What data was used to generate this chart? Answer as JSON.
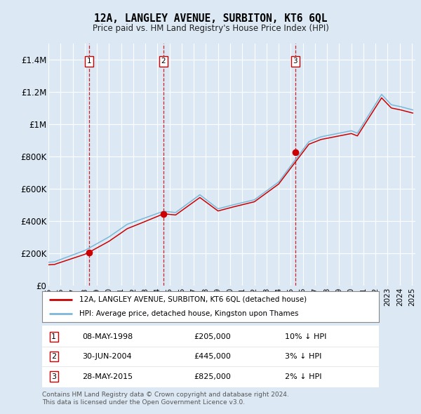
{
  "title": "12A, LANGLEY AVENUE, SURBITON, KT6 6QL",
  "subtitle": "Price paid vs. HM Land Registry's House Price Index (HPI)",
  "background_color": "#dce9f5",
  "plot_bg_color": "#dce9f5",
  "hpi_color": "#7bb8d8",
  "price_color": "#cc0000",
  "sale_marker_color": "#cc0000",
  "ylim": [
    0,
    1500000
  ],
  "yticks": [
    0,
    200000,
    400000,
    600000,
    800000,
    1000000,
    1200000,
    1400000
  ],
  "ytick_labels": [
    "£0",
    "£200K",
    "£400K",
    "£600K",
    "£800K",
    "£1M",
    "£1.2M",
    "£1.4M"
  ],
  "sales": [
    {
      "label": "1",
      "year": 1998.35,
      "price": 205000,
      "date": "08-MAY-1998",
      "pct": "10% ↓ HPI"
    },
    {
      "label": "2",
      "year": 2004.49,
      "price": 445000,
      "date": "30-JUN-2004",
      "pct": "3% ↓ HPI"
    },
    {
      "label": "3",
      "year": 2015.37,
      "price": 825000,
      "date": "28-MAY-2015",
      "pct": "2% ↓ HPI"
    }
  ],
  "legend_property_label": "12A, LANGLEY AVENUE, SURBITON, KT6 6QL (detached house)",
  "legend_hpi_label": "HPI: Average price, detached house, Kingston upon Thames",
  "footer_line1": "Contains HM Land Registry data © Crown copyright and database right 2024.",
  "footer_line2": "This data is licensed under the Open Government Licence v3.0."
}
